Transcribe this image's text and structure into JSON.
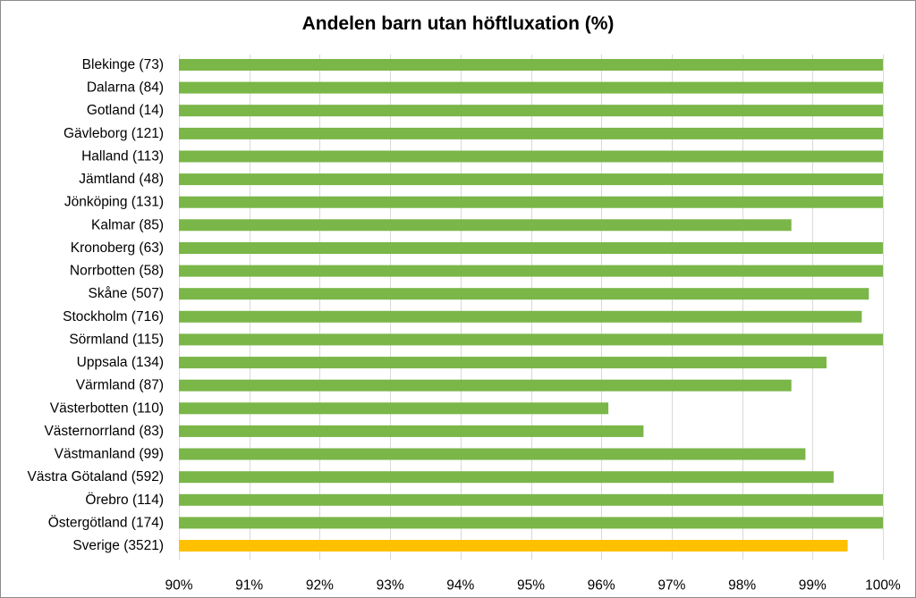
{
  "chart_data": {
    "type": "bar",
    "orientation": "horizontal",
    "title": "Andelen barn utan höftluxation (%)",
    "xlabel": "",
    "ylabel": "",
    "xlim": [
      90,
      100
    ],
    "x_ticks": [
      "90%",
      "91%",
      "92%",
      "93%",
      "94%",
      "95%",
      "96%",
      "97%",
      "98%",
      "99%",
      "100%"
    ],
    "grid": "vertical",
    "legend": "none",
    "categories": [
      "Blekinge (73)",
      "Dalarna (84)",
      "Gotland (14)",
      "Gävleborg (121)",
      "Halland (113)",
      "Jämtland (48)",
      "Jönköping (131)",
      "Kalmar (85)",
      "Kronoberg (63)",
      "Norrbotten (58)",
      "Skåne (507)",
      "Stockholm (716)",
      "Sörmland (115)",
      "Uppsala (134)",
      "Värmland (87)",
      "Västerbotten (110)",
      "Västernorrland (83)",
      "Västmanland (99)",
      "Västra Götaland (592)",
      "Örebro (114)",
      "Östergötland (174)",
      "Sverige (3521)"
    ],
    "values": [
      100,
      100,
      100,
      100,
      100,
      100,
      100,
      98.7,
      100,
      100,
      99.8,
      99.7,
      100,
      99.2,
      98.7,
      96.1,
      96.6,
      98.9,
      99.3,
      100,
      100,
      99.5
    ],
    "bar_color": "#7ab648",
    "highlight_index": 21,
    "highlight_color": "#ffc000",
    "grid_color": "#d9d9d9"
  }
}
